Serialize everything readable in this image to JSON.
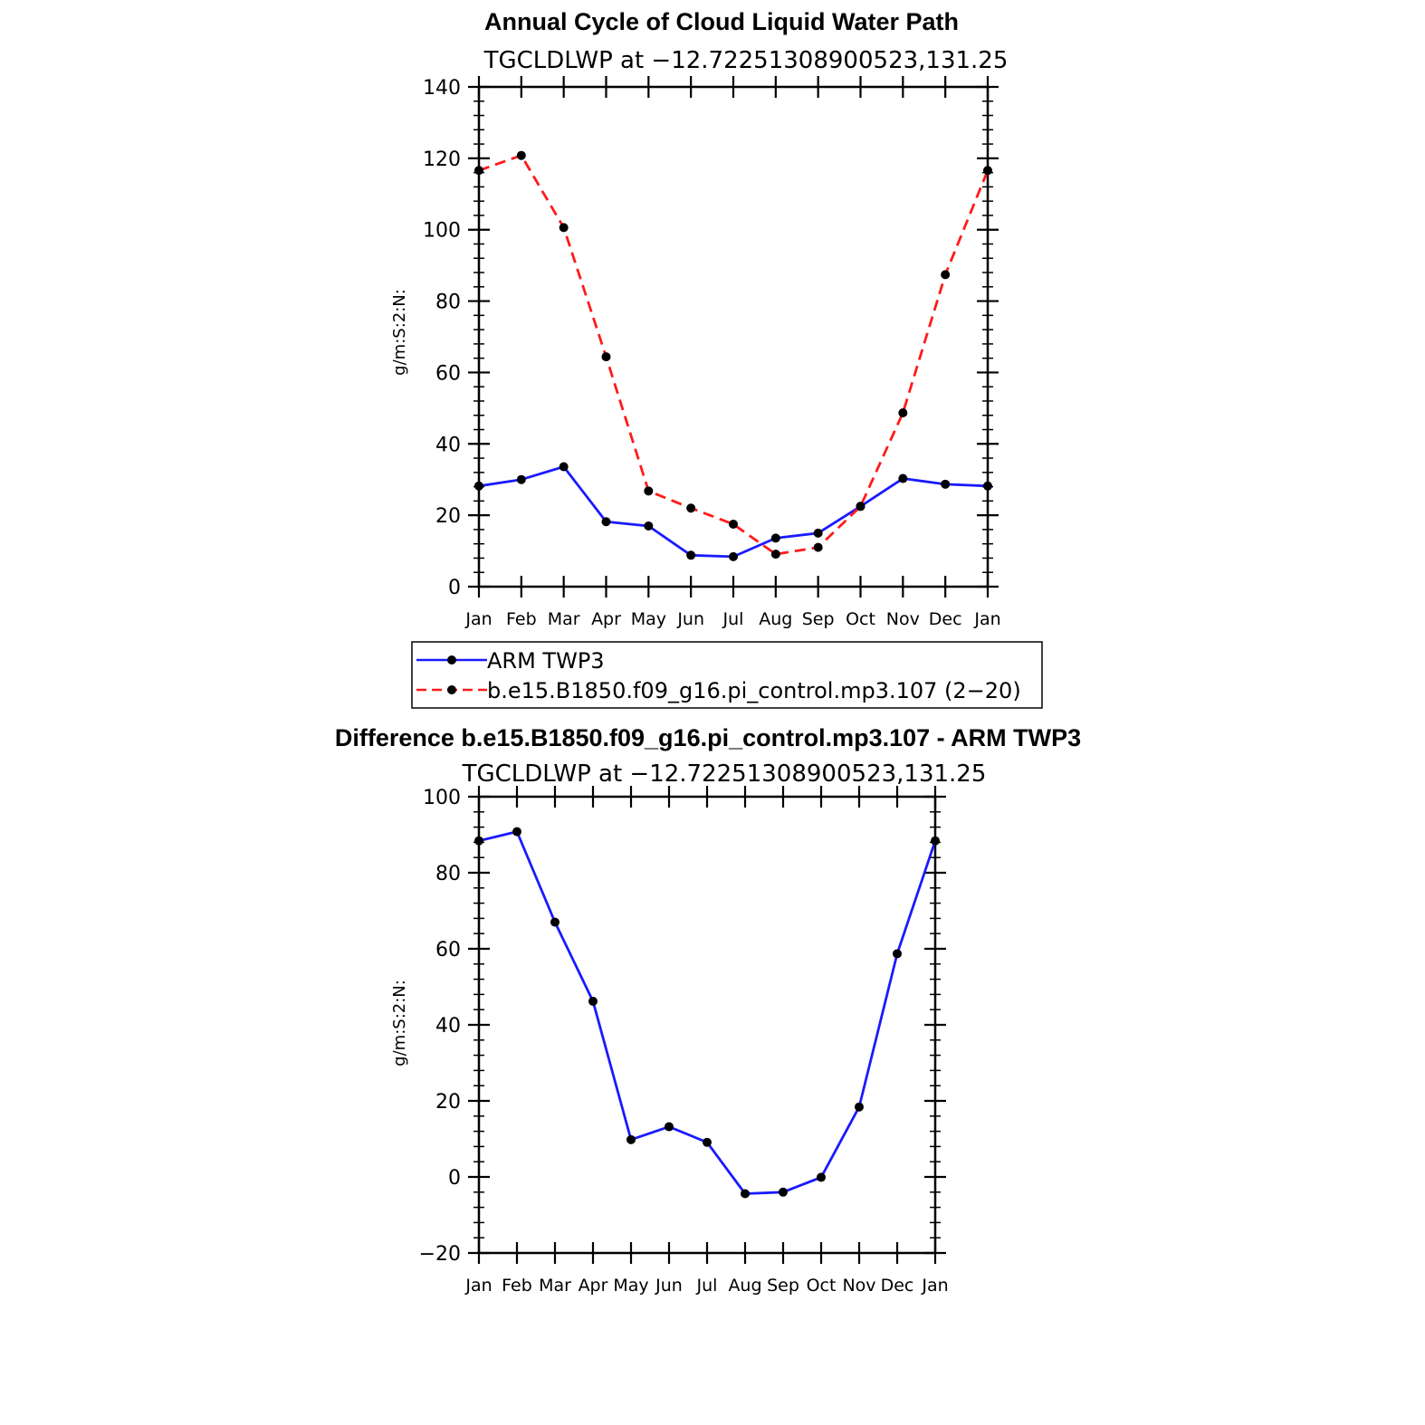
{
  "colors": {
    "obs": "#1a1aff",
    "model": "#ff1a1a",
    "marker": "#000000",
    "axis": "#000000"
  },
  "chart_data": [
    {
      "type": "line",
      "title": "Annual Cycle of Cloud Liquid Water Path",
      "subtitle": "TGCLDLWP at −12.72251308900523,131.25",
      "ylabel": "g/m:S:2:N:",
      "categories": [
        "Jan",
        "Feb",
        "Mar",
        "Apr",
        "May",
        "Jun",
        "Jul",
        "Aug",
        "Sep",
        "Oct",
        "Nov",
        "Dec",
        "Jan"
      ],
      "ylim": [
        0,
        140
      ],
      "yticks": [
        0,
        20,
        40,
        60,
        80,
        100,
        120,
        140
      ],
      "ytick_labels": [
        "0",
        "20",
        "40",
        "60",
        "80",
        "100",
        "120",
        "140"
      ],
      "series": [
        {
          "name": "ARM TWP3",
          "style": "solid",
          "color_key": "obs",
          "values": [
            28.2,
            30.0,
            33.6,
            18.2,
            17.0,
            8.8,
            8.4,
            13.6,
            15.0,
            22.5,
            30.3,
            28.7,
            28.2
          ]
        },
        {
          "name": "b.e15.B1850.f09_g16.pi_control.mp3.107 (2−20)",
          "style": "dashed",
          "color_key": "model",
          "values": [
            116.6,
            120.8,
            100.6,
            64.4,
            26.8,
            22.0,
            17.5,
            9.1,
            11.0,
            22.5,
            48.7,
            87.4,
            116.6
          ]
        }
      ],
      "legend": {
        "position": "bottom",
        "entries": [
          "ARM TWP3",
          "b.e15.B1850.f09_g16.pi_control.mp3.107 (2−20)"
        ]
      }
    },
    {
      "type": "line",
      "title": "Difference b.e15.B1850.f09_g16.pi_control.mp3.107 - ARM TWP3",
      "subtitle": "TGCLDLWP at −12.72251308900523,131.25",
      "ylabel": "g/m:S:2:N:",
      "categories": [
        "Jan",
        "Feb",
        "Mar",
        "Apr",
        "May",
        "Jun",
        "Jul",
        "Aug",
        "Sep",
        "Oct",
        "Nov",
        "Dec",
        "Jan"
      ],
      "ylim": [
        -20,
        100
      ],
      "yticks": [
        -20,
        0,
        20,
        40,
        60,
        80,
        100
      ],
      "ytick_labels": [
        "−20",
        "0",
        "20",
        "40",
        "60",
        "80",
        "100"
      ],
      "series": [
        {
          "name": "Difference",
          "style": "solid",
          "color_key": "obs",
          "values": [
            88.4,
            90.8,
            67.0,
            46.2,
            9.8,
            13.2,
            9.1,
            -4.4,
            -4.0,
            -0.1,
            18.4,
            58.7,
            88.4
          ]
        }
      ]
    }
  ]
}
